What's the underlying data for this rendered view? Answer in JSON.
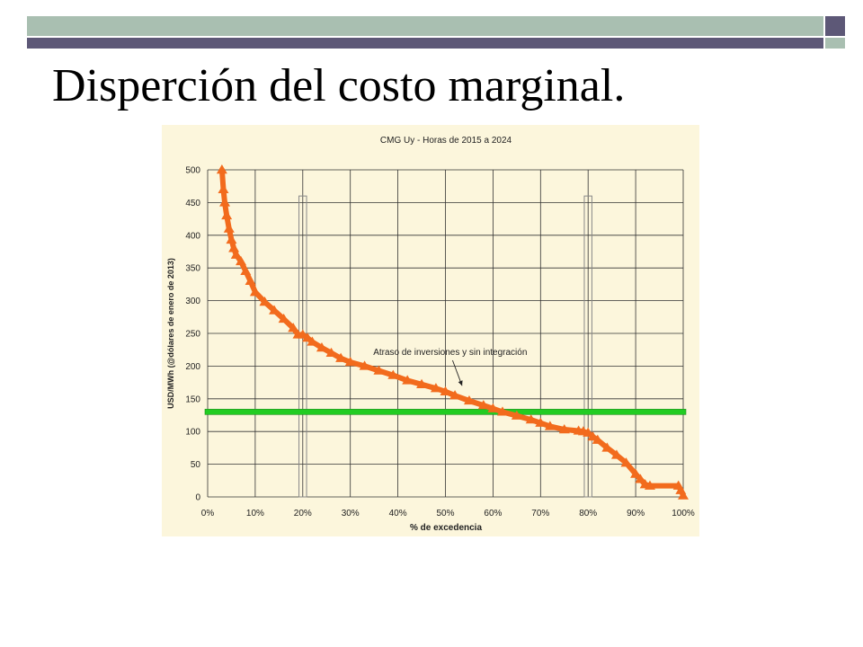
{
  "slide": {
    "title": "Disperción del costo marginal.",
    "colors": {
      "accent_light": "#a9bfb1",
      "accent_dark": "#5d5877",
      "chart_bg": "#fcf6dc"
    }
  },
  "chart_data": {
    "type": "line",
    "title": "CMG Uy - Horas de 2015 a 2024",
    "xlabel": "% de excedencia",
    "ylabel": "USD/MWh (@dólares de enero de 2013)",
    "xlim": [
      0,
      100
    ],
    "ylim": [
      0,
      500
    ],
    "x_ticks": [
      0,
      10,
      20,
      30,
      40,
      50,
      60,
      70,
      80,
      90,
      100
    ],
    "x_tick_labels": [
      "0%",
      "10%",
      "20%",
      "30%",
      "40%",
      "50%",
      "60%",
      "70%",
      "80%",
      "90%",
      "100%"
    ],
    "y_ticks": [
      0,
      50,
      100,
      150,
      200,
      250,
      300,
      350,
      400,
      450,
      500
    ],
    "y_tick_labels": [
      "0",
      "50",
      "100",
      "150",
      "200",
      "250",
      "300",
      "350",
      "400",
      "450",
      "500"
    ],
    "grid": true,
    "series": [
      {
        "color": "#f26b1d",
        "marker": "triangle",
        "points": [
          [
            3,
            500
          ],
          [
            3.3,
            470
          ],
          [
            3.6,
            450
          ],
          [
            4,
            430
          ],
          [
            4.5,
            410
          ],
          [
            5,
            393
          ],
          [
            5.5,
            380
          ],
          [
            6,
            370
          ],
          [
            7,
            360
          ],
          [
            8,
            345
          ],
          [
            9,
            330
          ],
          [
            10,
            313
          ],
          [
            12,
            298
          ],
          [
            14,
            285
          ],
          [
            16,
            272
          ],
          [
            18,
            258
          ],
          [
            19,
            248
          ],
          [
            20,
            248
          ],
          [
            21,
            243
          ],
          [
            22,
            237
          ],
          [
            24,
            228
          ],
          [
            26,
            220
          ],
          [
            28,
            212
          ],
          [
            30,
            206
          ],
          [
            33,
            200
          ],
          [
            36,
            193
          ],
          [
            39,
            186
          ],
          [
            42,
            178
          ],
          [
            45,
            172
          ],
          [
            48,
            166
          ],
          [
            50,
            161
          ],
          [
            52,
            155
          ],
          [
            55,
            147
          ],
          [
            58,
            140
          ],
          [
            60,
            135
          ],
          [
            62,
            130
          ],
          [
            65,
            124
          ],
          [
            68,
            118
          ],
          [
            70,
            113
          ],
          [
            72,
            108
          ],
          [
            75,
            103
          ],
          [
            78,
            101
          ],
          [
            79,
            100
          ],
          [
            80,
            98
          ],
          [
            81,
            92
          ],
          [
            82,
            87
          ],
          [
            84,
            75
          ],
          [
            86,
            64
          ],
          [
            88,
            52
          ],
          [
            90,
            35
          ],
          [
            91,
            27
          ],
          [
            92,
            19
          ],
          [
            93,
            17
          ],
          [
            99,
            17
          ],
          [
            99.5,
            10
          ],
          [
            100,
            2
          ]
        ]
      }
    ],
    "reference_line": {
      "y": 130,
      "color": "#22cc22"
    },
    "highlight_bands": [
      {
        "x_from": 19.2,
        "x_to": 20.8,
        "y_top": 460
      },
      {
        "x_from": 79.2,
        "x_to": 80.8,
        "y_top": 460
      }
    ],
    "annotation": {
      "text": "Atraso de inversiones y sin integración",
      "x": 51,
      "y": 217,
      "arrow_to": [
        53.5,
        170
      ]
    }
  }
}
